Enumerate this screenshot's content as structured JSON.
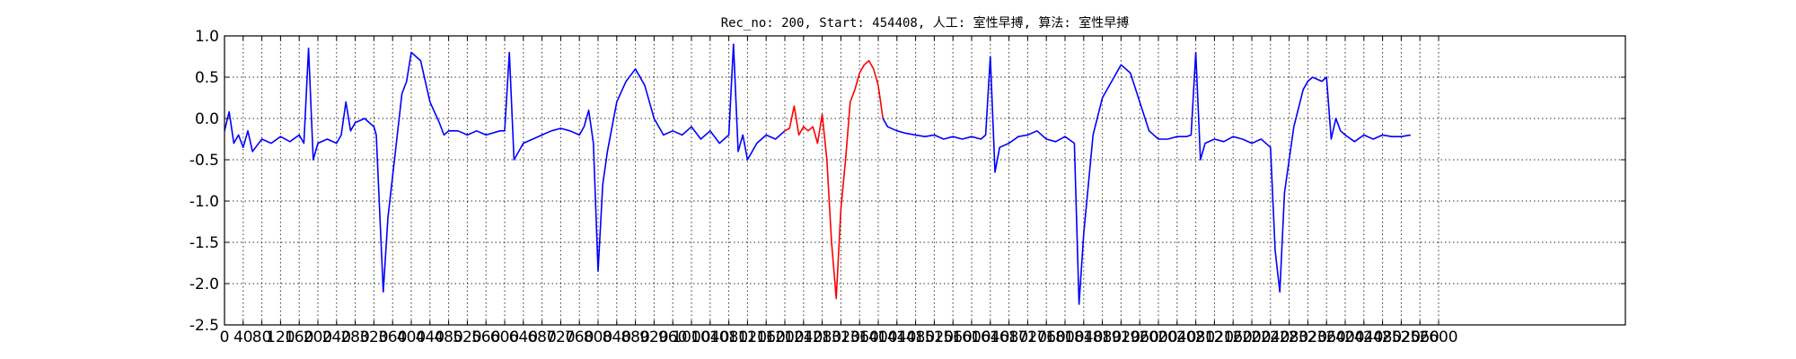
{
  "chart_data": {
    "type": "line",
    "title": "Rec_no: 200, Start: 454408, 人工: 室性早搏, 算法: 室性早搏",
    "xlabel": "",
    "ylabel": "",
    "xlim": [
      0,
      3000
    ],
    "ylim": [
      -2.5,
      1.0
    ],
    "grid": true,
    "y_ticks": [
      "1.0",
      "0.5",
      "0.0",
      "-0.5",
      "-1.0",
      "-1.5",
      "-2.0",
      "-2.5"
    ],
    "y_tick_values": [
      1.0,
      0.5,
      0.0,
      -0.5,
      -1.0,
      -1.5,
      -2.0,
      -2.5
    ],
    "x_tick_values": [
      0,
      40,
      80,
      120,
      160,
      200,
      240,
      280,
      320,
      360,
      400,
      440,
      480,
      520,
      560,
      600,
      640,
      680,
      720,
      760,
      800,
      840,
      880,
      920,
      960,
      1000,
      1040,
      1080,
      1120,
      1160,
      1200,
      1240,
      1280,
      1320,
      1360,
      1400,
      1440,
      1480,
      1520,
      1560,
      1600,
      1640,
      1680,
      1720,
      1760,
      1800,
      1840,
      1880,
      1920,
      1960,
      2000,
      2040,
      2080,
      2120,
      2160,
      2200,
      2240,
      2280,
      2320,
      2360,
      2400,
      2440,
      2480,
      2520,
      2560,
      2600
    ],
    "x_ticks": [
      "0",
      "40",
      "80",
      "120",
      "160",
      "200",
      "240",
      "280",
      "320",
      "360",
      "400",
      "440",
      "480",
      "520",
      "560",
      "600",
      "640",
      "680",
      "720",
      "760",
      "800",
      "840",
      "880",
      "920",
      "960",
      "1000",
      "1040",
      "1080",
      "1120",
      "1160",
      "1200",
      "1240",
      "1280",
      "1320",
      "1360",
      "1400",
      "1440",
      "1480",
      "1520",
      "1560",
      "1600",
      "1640",
      "1680",
      "1720",
      "1760",
      "1800",
      "1840",
      "1880",
      "1920",
      "1960",
      "2000",
      "2040",
      "2080",
      "2120",
      "2160",
      "2200",
      "2240",
      "2280",
      "2320",
      "2360",
      "2400",
      "2440",
      "2480",
      "2520",
      "2560",
      "2600"
    ],
    "series": [
      {
        "color": "#0000ff",
        "points": [
          [
            0,
            -0.15
          ],
          [
            10,
            0.08
          ],
          [
            20,
            -0.3
          ],
          [
            30,
            -0.2
          ],
          [
            40,
            -0.35
          ],
          [
            50,
            -0.15
          ],
          [
            60,
            -0.4
          ],
          [
            80,
            -0.25
          ],
          [
            100,
            -0.3
          ],
          [
            120,
            -0.22
          ],
          [
            140,
            -0.28
          ],
          [
            160,
            -0.2
          ],
          [
            170,
            -0.3
          ],
          [
            180,
            0.85
          ],
          [
            190,
            -0.5
          ],
          [
            200,
            -0.3
          ],
          [
            220,
            -0.25
          ],
          [
            240,
            -0.3
          ],
          [
            250,
            -0.2
          ],
          [
            260,
            0.2
          ],
          [
            270,
            -0.15
          ],
          [
            280,
            -0.05
          ],
          [
            300,
            0.0
          ],
          [
            310,
            -0.05
          ],
          [
            320,
            -0.1
          ],
          [
            325,
            -0.2
          ],
          [
            340,
            -2.1
          ],
          [
            350,
            -1.2
          ],
          [
            370,
            -0.2
          ],
          [
            380,
            0.3
          ],
          [
            390,
            0.45
          ],
          [
            400,
            0.8
          ],
          [
            420,
            0.7
          ],
          [
            440,
            0.2
          ],
          [
            460,
            -0.05
          ],
          [
            470,
            -0.2
          ],
          [
            480,
            -0.15
          ],
          [
            500,
            -0.15
          ],
          [
            520,
            -0.2
          ],
          [
            540,
            -0.15
          ],
          [
            560,
            -0.2
          ],
          [
            590,
            -0.15
          ],
          [
            600,
            -0.15
          ],
          [
            610,
            0.8
          ],
          [
            620,
            -0.5
          ],
          [
            640,
            -0.3
          ],
          [
            660,
            -0.25
          ],
          [
            680,
            -0.2
          ],
          [
            700,
            -0.15
          ],
          [
            720,
            -0.12
          ],
          [
            740,
            -0.15
          ],
          [
            760,
            -0.2
          ],
          [
            770,
            -0.1
          ],
          [
            780,
            0.1
          ],
          [
            790,
            -0.3
          ],
          [
            800,
            -1.85
          ],
          [
            810,
            -0.8
          ],
          [
            820,
            -0.4
          ],
          [
            840,
            0.2
          ],
          [
            860,
            0.45
          ],
          [
            880,
            0.6
          ],
          [
            900,
            0.4
          ],
          [
            920,
            0.0
          ],
          [
            940,
            -0.2
          ],
          [
            960,
            -0.15
          ],
          [
            980,
            -0.2
          ],
          [
            1000,
            -0.1
          ],
          [
            1020,
            -0.25
          ],
          [
            1040,
            -0.15
          ],
          [
            1060,
            -0.3
          ],
          [
            1080,
            -0.2
          ],
          [
            1090,
            0.9
          ],
          [
            1100,
            -0.4
          ],
          [
            1110,
            -0.2
          ],
          [
            1120,
            -0.5
          ],
          [
            1140,
            -0.3
          ],
          [
            1160,
            -0.2
          ],
          [
            1180,
            -0.25
          ],
          [
            1200,
            -0.15
          ]
        ]
      },
      {
        "color": "#ff0000",
        "points": [
          [
            1200,
            -0.15
          ],
          [
            1210,
            -0.12
          ],
          [
            1220,
            0.15
          ],
          [
            1230,
            -0.2
          ],
          [
            1240,
            -0.1
          ],
          [
            1250,
            -0.15
          ],
          [
            1260,
            -0.1
          ],
          [
            1270,
            -0.3
          ],
          [
            1280,
            0.05
          ],
          [
            1290,
            -0.5
          ],
          [
            1300,
            -1.5
          ],
          [
            1310,
            -2.18
          ],
          [
            1320,
            -1.1
          ],
          [
            1330,
            -0.5
          ],
          [
            1340,
            0.2
          ],
          [
            1350,
            0.35
          ],
          [
            1360,
            0.55
          ],
          [
            1370,
            0.65
          ],
          [
            1380,
            0.7
          ],
          [
            1390,
            0.6
          ],
          [
            1400,
            0.4
          ],
          [
            1410,
            0.0
          ]
        ]
      },
      {
        "color": "#0000ff",
        "points": [
          [
            1410,
            0.0
          ],
          [
            1420,
            -0.1
          ],
          [
            1440,
            -0.15
          ],
          [
            1460,
            -0.18
          ],
          [
            1480,
            -0.2
          ],
          [
            1500,
            -0.22
          ],
          [
            1520,
            -0.2
          ],
          [
            1540,
            -0.25
          ],
          [
            1560,
            -0.22
          ],
          [
            1580,
            -0.25
          ],
          [
            1600,
            -0.22
          ],
          [
            1620,
            -0.25
          ],
          [
            1630,
            -0.2
          ],
          [
            1640,
            0.75
          ],
          [
            1650,
            -0.65
          ],
          [
            1660,
            -0.35
          ],
          [
            1680,
            -0.3
          ],
          [
            1700,
            -0.22
          ],
          [
            1720,
            -0.2
          ],
          [
            1740,
            -0.15
          ],
          [
            1760,
            -0.25
          ],
          [
            1780,
            -0.28
          ],
          [
            1800,
            -0.22
          ],
          [
            1820,
            -0.3
          ],
          [
            1830,
            -2.25
          ],
          [
            1840,
            -1.4
          ],
          [
            1860,
            -0.2
          ],
          [
            1880,
            0.25
          ],
          [
            1900,
            0.45
          ],
          [
            1920,
            0.65
          ],
          [
            1940,
            0.55
          ],
          [
            1960,
            0.2
          ],
          [
            1980,
            -0.15
          ],
          [
            2000,
            -0.25
          ],
          [
            2020,
            -0.25
          ],
          [
            2040,
            -0.22
          ],
          [
            2060,
            -0.22
          ],
          [
            2070,
            -0.2
          ],
          [
            2080,
            0.8
          ],
          [
            2090,
            -0.5
          ],
          [
            2100,
            -0.3
          ],
          [
            2120,
            -0.25
          ],
          [
            2140,
            -0.28
          ],
          [
            2160,
            -0.22
          ],
          [
            2180,
            -0.25
          ],
          [
            2200,
            -0.3
          ],
          [
            2220,
            -0.25
          ],
          [
            2240,
            -0.35
          ],
          [
            2250,
            -1.6
          ],
          [
            2260,
            -2.1
          ],
          [
            2270,
            -0.9
          ],
          [
            2290,
            -0.1
          ],
          [
            2310,
            0.35
          ],
          [
            2320,
            0.45
          ],
          [
            2330,
            0.5
          ],
          [
            2350,
            0.45
          ],
          [
            2360,
            0.5
          ],
          [
            2370,
            -0.25
          ],
          [
            2380,
            0.0
          ],
          [
            2390,
            -0.15
          ],
          [
            2400,
            -0.2
          ],
          [
            2420,
            -0.28
          ],
          [
            2440,
            -0.2
          ],
          [
            2460,
            -0.25
          ],
          [
            2480,
            -0.2
          ],
          [
            2500,
            -0.22
          ],
          [
            2520,
            -0.22
          ],
          [
            2540,
            -0.2
          ]
        ]
      }
    ]
  }
}
